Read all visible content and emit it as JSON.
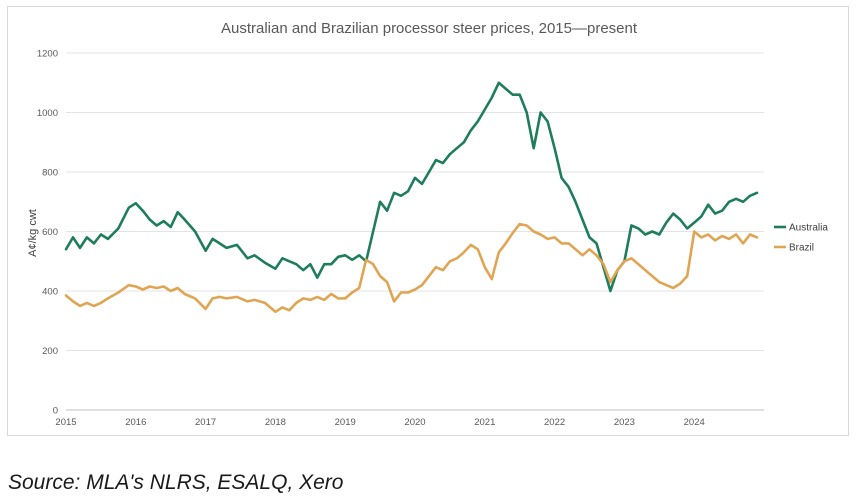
{
  "chart_data": {
    "type": "line",
    "title": "Australian and Brazilian processor steer prices, 2015—present",
    "xlabel": "",
    "ylabel": "A¢/kg cwt",
    "ylim": [
      0,
      1200
    ],
    "yticks": [
      0,
      200,
      400,
      600,
      800,
      1000,
      1200
    ],
    "xlim": [
      2015,
      2025
    ],
    "xticks": [
      2015,
      2016,
      2017,
      2018,
      2019,
      2020,
      2021,
      2022,
      2023,
      2024
    ],
    "grid": "horizontal",
    "legend_position": "right",
    "series": [
      {
        "name": "Australia",
        "color": "#1e7d5a",
        "x": [
          2015.0,
          2015.1,
          2015.2,
          2015.3,
          2015.4,
          2015.5,
          2015.6,
          2015.75,
          2015.9,
          2016.0,
          2016.1,
          2016.2,
          2016.3,
          2016.4,
          2016.5,
          2016.6,
          2016.7,
          2016.85,
          2017.0,
          2017.1,
          2017.2,
          2017.3,
          2017.45,
          2017.6,
          2017.7,
          2017.85,
          2018.0,
          2018.1,
          2018.2,
          2018.3,
          2018.4,
          2018.5,
          2018.6,
          2018.7,
          2018.8,
          2018.9,
          2019.0,
          2019.1,
          2019.2,
          2019.3,
          2019.4,
          2019.5,
          2019.6,
          2019.7,
          2019.8,
          2019.9,
          2020.0,
          2020.1,
          2020.2,
          2020.3,
          2020.4,
          2020.5,
          2020.6,
          2020.7,
          2020.8,
          2020.9,
          2021.0,
          2021.1,
          2021.2,
          2021.3,
          2021.4,
          2021.5,
          2021.6,
          2021.7,
          2021.8,
          2021.9,
          2022.0,
          2022.1,
          2022.2,
          2022.3,
          2022.4,
          2022.5,
          2022.6,
          2022.7,
          2022.8,
          2022.9,
          2023.0,
          2023.1,
          2023.2,
          2023.3,
          2023.4,
          2023.5,
          2023.6,
          2023.7,
          2023.8,
          2023.9,
          2024.0,
          2024.1,
          2024.2,
          2024.3,
          2024.4,
          2024.5,
          2024.6,
          2024.7,
          2024.8,
          2024.9
        ],
        "values": [
          540,
          580,
          545,
          580,
          560,
          590,
          575,
          610,
          680,
          695,
          670,
          640,
          620,
          635,
          615,
          665,
          640,
          600,
          535,
          575,
          560,
          545,
          555,
          510,
          520,
          495,
          475,
          510,
          500,
          490,
          470,
          490,
          445,
          490,
          490,
          515,
          520,
          505,
          520,
          500,
          600,
          700,
          670,
          730,
          720,
          735,
          780,
          760,
          800,
          840,
          830,
          860,
          880,
          900,
          940,
          970,
          1010,
          1050,
          1100,
          1080,
          1060,
          1060,
          1000,
          880,
          1000,
          970,
          880,
          780,
          750,
          700,
          640,
          580,
          560,
          480,
          400,
          470,
          500,
          620,
          610,
          590,
          600,
          590,
          630,
          660,
          640,
          610,
          630,
          650,
          690,
          660,
          670,
          700,
          710,
          700,
          720,
          730
        ]
      },
      {
        "name": "Brazil",
        "color": "#e0a553",
        "x": [
          2015.0,
          2015.1,
          2015.2,
          2015.3,
          2015.4,
          2015.5,
          2015.6,
          2015.75,
          2015.9,
          2016.0,
          2016.1,
          2016.2,
          2016.3,
          2016.4,
          2016.5,
          2016.6,
          2016.7,
          2016.85,
          2017.0,
          2017.1,
          2017.2,
          2017.3,
          2017.45,
          2017.6,
          2017.7,
          2017.85,
          2018.0,
          2018.1,
          2018.2,
          2018.3,
          2018.4,
          2018.5,
          2018.6,
          2018.7,
          2018.8,
          2018.9,
          2019.0,
          2019.1,
          2019.2,
          2019.3,
          2019.4,
          2019.5,
          2019.6,
          2019.7,
          2019.8,
          2019.9,
          2020.0,
          2020.1,
          2020.2,
          2020.3,
          2020.4,
          2020.5,
          2020.6,
          2020.7,
          2020.8,
          2020.9,
          2021.0,
          2021.1,
          2021.2,
          2021.3,
          2021.4,
          2021.5,
          2021.6,
          2021.7,
          2021.8,
          2021.9,
          2022.0,
          2022.1,
          2022.2,
          2022.3,
          2022.4,
          2022.5,
          2022.6,
          2022.7,
          2022.8,
          2022.9,
          2023.0,
          2023.1,
          2023.2,
          2023.3,
          2023.4,
          2023.5,
          2023.6,
          2023.7,
          2023.8,
          2023.9,
          2024.0,
          2024.1,
          2024.2,
          2024.3,
          2024.4,
          2024.5,
          2024.6,
          2024.7,
          2024.8,
          2024.9
        ],
        "values": [
          385,
          365,
          350,
          360,
          350,
          360,
          375,
          395,
          420,
          415,
          405,
          415,
          410,
          415,
          400,
          410,
          390,
          375,
          340,
          375,
          380,
          375,
          380,
          365,
          370,
          360,
          330,
          345,
          335,
          360,
          375,
          370,
          380,
          370,
          390,
          375,
          375,
          395,
          410,
          505,
          490,
          450,
          430,
          365,
          395,
          395,
          405,
          420,
          450,
          480,
          470,
          500,
          510,
          530,
          555,
          540,
          480,
          440,
          530,
          560,
          595,
          625,
          620,
          600,
          590,
          575,
          580,
          560,
          560,
          540,
          520,
          540,
          520,
          490,
          430,
          470,
          500,
          510,
          490,
          470,
          450,
          430,
          420,
          410,
          425,
          450,
          600,
          580,
          590,
          570,
          585,
          575,
          590,
          560,
          590,
          580
        ]
      }
    ]
  },
  "source": "Source: MLA's NLRS, ESALQ, Xero"
}
